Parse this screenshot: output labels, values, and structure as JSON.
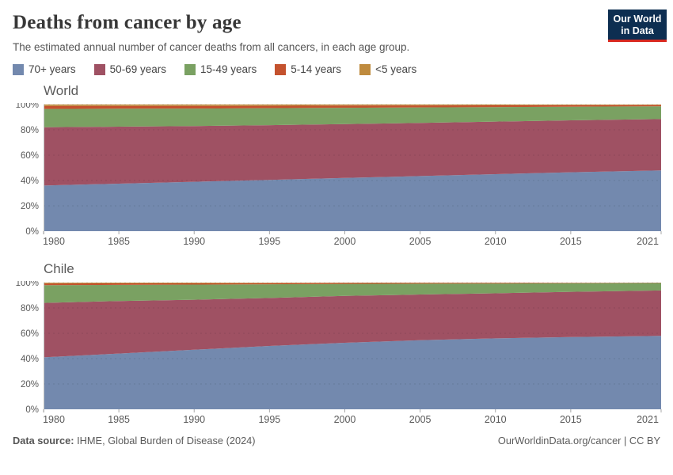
{
  "header": {
    "title": "Deaths from cancer by age",
    "subtitle": "The estimated annual number of cancer deaths from all cancers, in each age group.",
    "logo": {
      "line1": "Our World",
      "line2": "in Data",
      "bg_color": "#0D2E51",
      "accent_color": "#D8281F"
    }
  },
  "legend": {
    "items": [
      {
        "label": "70+ years",
        "color": "#7389AE"
      },
      {
        "label": "50-69 years",
        "color": "#9F5163"
      },
      {
        "label": "15-49 years",
        "color": "#7AA162"
      },
      {
        "label": "5-14 years",
        "color": "#C4522E"
      },
      {
        "label": "<5 years",
        "color": "#BF8B3E"
      }
    ]
  },
  "axis": {
    "x_ticks": [
      1980,
      1985,
      1990,
      1995,
      2000,
      2005,
      2010,
      2015,
      2021
    ],
    "y_tick_labels": [
      "0%",
      "20%",
      "40%",
      "60%",
      "80%",
      "100%"
    ],
    "y_tick_values": [
      0,
      20,
      40,
      60,
      80,
      100
    ],
    "x_range": [
      1980,
      2021
    ],
    "y_range": [
      0,
      100
    ],
    "grid": "dashed"
  },
  "chart_data": [
    {
      "type": "area",
      "stacking": "percent",
      "title": "World",
      "x": [
        1980,
        1985,
        1990,
        1995,
        2000,
        2005,
        2010,
        2015,
        2021
      ],
      "ylim": [
        0,
        100
      ],
      "series": [
        {
          "name": "70+ years",
          "color": "#7389AE",
          "values": [
            36.0,
            37.5,
            39.0,
            40.5,
            42.0,
            43.5,
            45.0,
            46.5,
            48.0
          ]
        },
        {
          "name": "50-69 years",
          "color": "#9F5163",
          "values": [
            46.0,
            45.0,
            44.0,
            43.2,
            42.5,
            42.0,
            41.5,
            41.0,
            40.5
          ]
        },
        {
          "name": "15-49 years",
          "color": "#7AA162",
          "values": [
            14.5,
            14.2,
            13.8,
            13.4,
            12.9,
            12.2,
            11.5,
            10.8,
            10.1
          ]
        },
        {
          "name": "5-14 years",
          "color": "#C4522E",
          "values": [
            2.3,
            2.2,
            2.1,
            1.9,
            1.8,
            1.6,
            1.4,
            1.2,
            1.0
          ]
        },
        {
          "name": "<5 years",
          "color": "#BF8B3E",
          "values": [
            1.2,
            1.1,
            1.1,
            1.0,
            0.8,
            0.7,
            0.6,
            0.5,
            0.4
          ]
        }
      ]
    },
    {
      "type": "area",
      "stacking": "percent",
      "title": "Chile",
      "x": [
        1980,
        1985,
        1990,
        1995,
        2000,
        2005,
        2010,
        2015,
        2021
      ],
      "ylim": [
        0,
        100
      ],
      "series": [
        {
          "name": "70+ years",
          "color": "#7389AE",
          "values": [
            41.0,
            44.0,
            47.0,
            50.0,
            52.5,
            54.5,
            56.0,
            57.0,
            58.0
          ]
        },
        {
          "name": "50-69 years",
          "color": "#9F5163",
          "values": [
            43.0,
            41.5,
            39.5,
            37.9,
            37.0,
            36.1,
            35.6,
            35.7,
            35.8
          ]
        },
        {
          "name": "15-49 years",
          "color": "#7AA162",
          "values": [
            14.0,
            12.7,
            11.9,
            10.8,
            9.5,
            8.6,
            7.7,
            6.8,
            5.9
          ]
        },
        {
          "name": "5-14 years",
          "color": "#C4522E",
          "values": [
            1.3,
            1.2,
            1.0,
            0.85,
            0.65,
            0.5,
            0.45,
            0.35,
            0.2
          ]
        },
        {
          "name": "<5 years",
          "color": "#BF8B3E",
          "values": [
            0.7,
            0.6,
            0.6,
            0.45,
            0.35,
            0.3,
            0.25,
            0.15,
            0.1
          ]
        }
      ]
    }
  ],
  "footer": {
    "source_label": "Data source:",
    "source_text": " IHME, Global Burden of Disease (2024)",
    "credit": "OurWorldinData.org/cancer | CC BY"
  }
}
